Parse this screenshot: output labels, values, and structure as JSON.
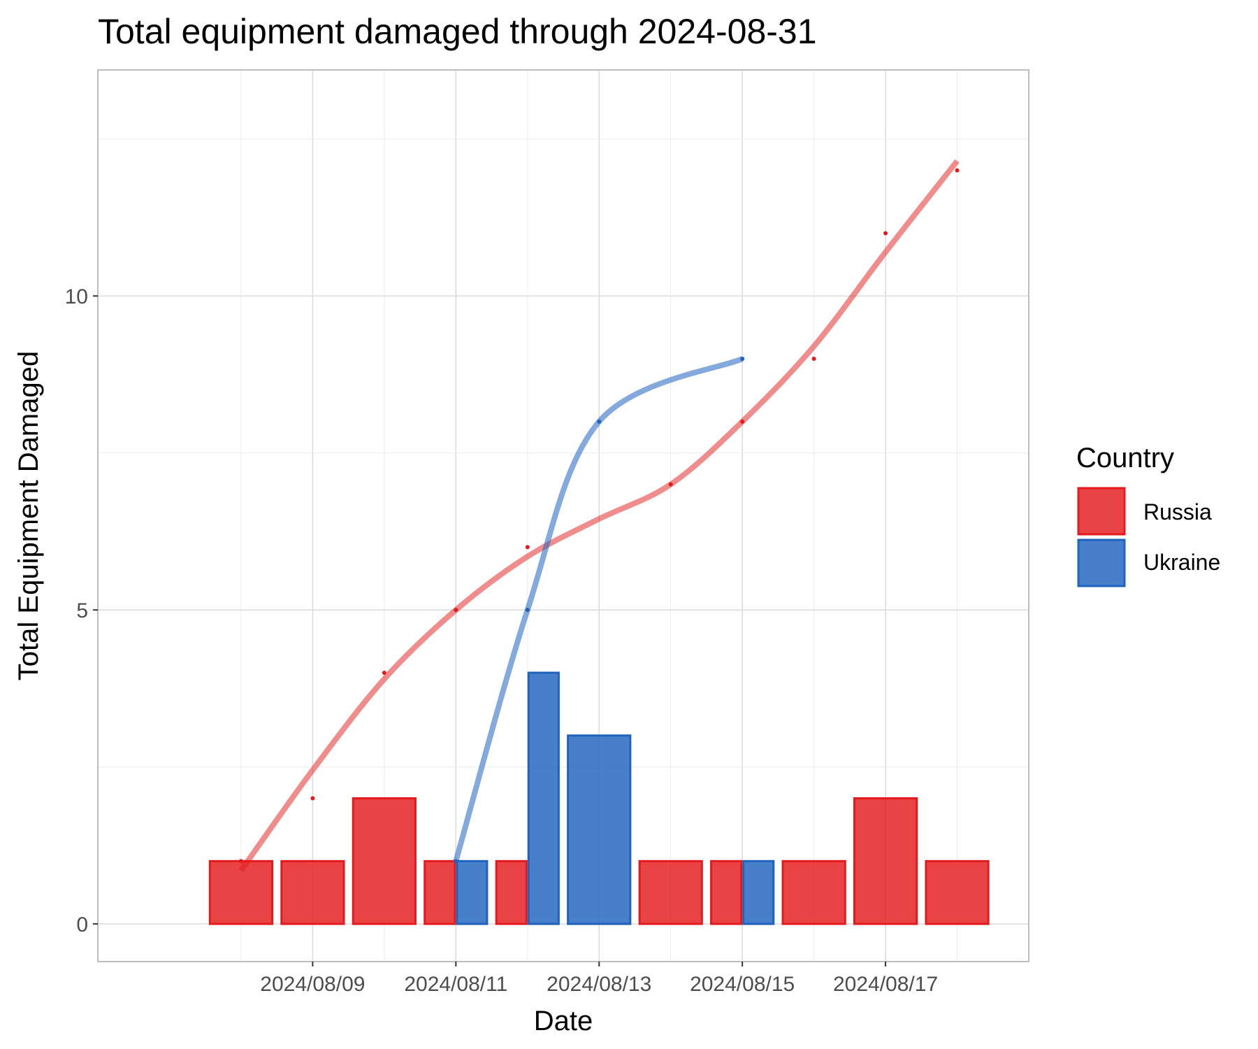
{
  "chart_data": {
    "type": "bar",
    "title": "Total equipment damaged through 2024-08-31",
    "xlabel": "Date",
    "ylabel": "Total Equipment Damaged",
    "x_ticks": [
      "2024/08/09",
      "2024/08/11",
      "2024/08/13",
      "2024/08/15",
      "2024/08/17"
    ],
    "y_ticks": [
      "0",
      "5",
      "10"
    ],
    "ylim": [
      -0.6,
      13.6
    ],
    "xlim": [
      "2024-08-06",
      "2024-08-19"
    ],
    "grid": true,
    "legend": {
      "title": "Country",
      "placement": "right",
      "entries": [
        "Russia",
        "Ukraine"
      ]
    },
    "series": [
      {
        "name": "Russia",
        "color": "#e41a1c",
        "daily": [
          {
            "x": "2024-08-08",
            "y": 1
          },
          {
            "x": "2024-08-09",
            "y": 1
          },
          {
            "x": "2024-08-10",
            "y": 2
          },
          {
            "x": "2024-08-11",
            "y": 1
          },
          {
            "x": "2024-08-12",
            "y": 1
          },
          {
            "x": "2024-08-14",
            "y": 1
          },
          {
            "x": "2024-08-15",
            "y": 1
          },
          {
            "x": "2024-08-16",
            "y": 1
          },
          {
            "x": "2024-08-17",
            "y": 2
          },
          {
            "x": "2024-08-18",
            "y": 1
          }
        ],
        "cumulative": [
          {
            "x": "2024-08-08",
            "y": 1
          },
          {
            "x": "2024-08-09",
            "y": 2
          },
          {
            "x": "2024-08-10",
            "y": 4
          },
          {
            "x": "2024-08-11",
            "y": 5
          },
          {
            "x": "2024-08-12",
            "y": 6
          },
          {
            "x": "2024-08-14",
            "y": 7
          },
          {
            "x": "2024-08-15",
            "y": 8
          },
          {
            "x": "2024-08-16",
            "y": 9
          },
          {
            "x": "2024-08-17",
            "y": 11
          },
          {
            "x": "2024-08-18",
            "y": 12
          }
        ],
        "smooth": [
          {
            "x": "2024-08-08",
            "y": 0.85
          },
          {
            "x": "2024-08-09",
            "y": 2.45
          },
          {
            "x": "2024-08-10",
            "y": 3.9
          },
          {
            "x": "2024-08-11",
            "y": 5.0
          },
          {
            "x": "2024-08-12",
            "y": 5.85
          },
          {
            "x": "2024-08-13",
            "y": 6.45
          },
          {
            "x": "2024-08-14",
            "y": 7.0
          },
          {
            "x": "2024-08-15",
            "y": 8.0
          },
          {
            "x": "2024-08-16",
            "y": 9.2
          },
          {
            "x": "2024-08-17",
            "y": 10.7
          },
          {
            "x": "2024-08-18",
            "y": 12.15
          }
        ]
      },
      {
        "name": "Ukraine",
        "color": "#1f63bf",
        "daily": [
          {
            "x": "2024-08-11",
            "y": 1
          },
          {
            "x": "2024-08-12",
            "y": 4
          },
          {
            "x": "2024-08-13",
            "y": 3
          },
          {
            "x": "2024-08-15",
            "y": 1
          }
        ],
        "cumulative": [
          {
            "x": "2024-08-11",
            "y": 1
          },
          {
            "x": "2024-08-12",
            "y": 5
          },
          {
            "x": "2024-08-13",
            "y": 8
          },
          {
            "x": "2024-08-15",
            "y": 9
          }
        ]
      }
    ]
  }
}
